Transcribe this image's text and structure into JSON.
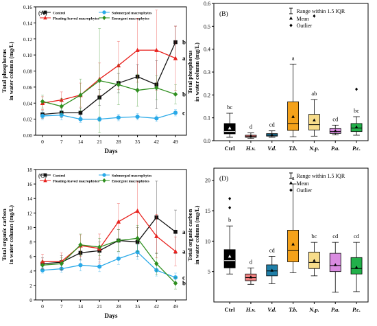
{
  "colors": {
    "control": "#111111",
    "submerged": "#29a9e8",
    "floating": "#e8221e",
    "emergent": "#2f8f1f",
    "box_fills": [
      "#000000",
      "#f08080",
      "#1f7fa8",
      "#f5a21a",
      "#f7dc8a",
      "#d98be0",
      "#22b04a"
    ]
  },
  "chart_data": [
    {
      "id": "A",
      "type": "line",
      "panel_label": "(A)",
      "title": "",
      "xlabel": "Days",
      "ylabel": "Total  phosphorus\nin water column (mg/L)",
      "x": [
        0,
        7,
        14,
        21,
        28,
        35,
        42,
        49
      ],
      "x_tick_labels": [
        "0",
        "7",
        "14",
        "21",
        "28",
        "35",
        "42",
        "49"
      ],
      "ylim": [
        0,
        0.16
      ],
      "y_ticks": [
        0.0,
        0.02,
        0.04,
        0.06,
        0.08,
        0.1,
        0.12,
        0.14,
        0.16
      ],
      "y_tick_labels": [
        "0.00",
        "0.02",
        "0.04",
        "0.06",
        "0.08",
        "0.10",
        "0.12",
        "0.14",
        "0.16"
      ],
      "legend": [
        "Control",
        "Submerged macrophytes",
        "Floating-leaved macrophytes",
        "Emergent macrophytes"
      ],
      "legend_position": "top",
      "series": [
        {
          "name": "Control",
          "key": "control",
          "marker": "square",
          "values": [
            0.026,
            0.028,
            0.028,
            0.047,
            0.065,
            0.073,
            0.063,
            0.116
          ],
          "errors": [
            0.005,
            0.006,
            0.006,
            0.01,
            0.012,
            0.015,
            0.03,
            0.02
          ],
          "sig_letter": "b"
        },
        {
          "name": "Submerged macrophytes",
          "key": "submerged",
          "marker": "circle",
          "values": [
            0.024,
            0.025,
            0.02,
            0.02,
            0.022,
            0.023,
            0.021,
            0.028
          ],
          "errors": [
            0.005,
            0.006,
            0.004,
            0.003,
            0.004,
            0.004,
            0.004,
            0.004
          ],
          "sig_letter": "c"
        },
        {
          "name": "Floating-leaved macrophytes",
          "key": "floating",
          "marker": "triangle",
          "values": [
            0.04,
            0.044,
            0.05,
            0.07,
            0.087,
            0.106,
            0.106,
            0.096
          ],
          "errors": [
            0.008,
            0.01,
            0.015,
            0.02,
            0.03,
            0.04,
            0.05,
            0.04
          ],
          "sig_letter": "a"
        },
        {
          "name": "Emergent macrophytes",
          "key": "emergent",
          "marker": "diamond",
          "values": [
            0.042,
            0.036,
            0.05,
            0.068,
            0.063,
            0.056,
            0.059,
            0.051
          ],
          "errors": [
            0.008,
            0.01,
            0.02,
            0.065,
            0.025,
            0.02,
            0.015,
            0.012
          ],
          "sig_letter": "b"
        }
      ]
    },
    {
      "id": "B",
      "type": "box",
      "panel_label": "(B)",
      "xlabel": "",
      "ylabel": "Total phosphorus\nin water column (mg/L)",
      "categories": [
        "Ctrl",
        "H.v.",
        "V.d.",
        "T.b.",
        "N.p.",
        "P.a.",
        "P.c."
      ],
      "italic_categories": [
        false,
        true,
        true,
        true,
        true,
        true,
        true
      ],
      "ylim": [
        0,
        0.6
      ],
      "y_ticks": [
        0.0,
        0.1,
        0.2,
        0.3,
        0.4,
        0.5,
        0.6
      ],
      "y_tick_labels": [
        "0.0",
        "0.1",
        "0.2",
        "0.3",
        "0.4",
        "0.5",
        "0.6"
      ],
      "legend": {
        "range": "Range within 1.5 IQR",
        "mean": "Mean",
        "outlier": "Outlier"
      },
      "legend_position": "top-right",
      "boxes": [
        {
          "min": 0.015,
          "q1": 0.03,
          "median": 0.04,
          "q3": 0.075,
          "max": 0.12,
          "mean": 0.055,
          "outliers": [],
          "letter": "bc"
        },
        {
          "min": 0.01,
          "q1": 0.015,
          "median": 0.018,
          "q3": 0.024,
          "max": 0.034,
          "mean": 0.02,
          "outliers": [],
          "letter": "d"
        },
        {
          "min": 0.015,
          "q1": 0.02,
          "median": 0.024,
          "q3": 0.031,
          "max": 0.043,
          "mean": 0.025,
          "outliers": [],
          "letter": "cd"
        },
        {
          "min": 0.017,
          "q1": 0.045,
          "median": 0.075,
          "q3": 0.17,
          "max": 0.335,
          "mean": 0.105,
          "outliers": [],
          "letter": "a"
        },
        {
          "min": 0.02,
          "q1": 0.047,
          "median": 0.07,
          "q3": 0.115,
          "max": 0.18,
          "mean": 0.09,
          "outliers": [
            0.545
          ],
          "letter": "ab"
        },
        {
          "min": 0.025,
          "q1": 0.032,
          "median": 0.04,
          "q3": 0.053,
          "max": 0.068,
          "mean": 0.043,
          "outliers": [],
          "letter": "cd"
        },
        {
          "min": 0.024,
          "q1": 0.04,
          "median": 0.055,
          "q3": 0.075,
          "max": 0.105,
          "mean": 0.06,
          "outliers": [
            0.225
          ],
          "letter": "bc"
        }
      ]
    },
    {
      "id": "C",
      "type": "line",
      "panel_label": "(C)",
      "xlabel": "Days",
      "ylabel": "Total organic carbon\nin water column (mg/L)",
      "x": [
        0,
        7,
        14,
        21,
        28,
        35,
        42,
        49
      ],
      "x_tick_labels": [
        "0",
        "7",
        "14",
        "21",
        "28",
        "35",
        "42",
        "49"
      ],
      "ylim": [
        0,
        18
      ],
      "y_ticks": [
        0,
        2,
        4,
        6,
        8,
        10,
        12,
        14,
        16,
        18
      ],
      "y_tick_labels": [
        "0",
        "2",
        "4",
        "6",
        "8",
        "10",
        "12",
        "14",
        "16",
        "18"
      ],
      "legend": [
        "Control",
        "Submerged macrophytes",
        "Floating-leaved macrophytes",
        "Emergent macrophytes"
      ],
      "legend_position": "top",
      "series": [
        {
          "name": "Control",
          "key": "control",
          "marker": "square",
          "values": [
            5.0,
            5.2,
            6.5,
            6.8,
            8.2,
            8.0,
            11.4,
            9.4
          ],
          "errors": [
            0.8,
            0.9,
            1.0,
            1.2,
            1.5,
            2.0,
            5.0,
            3.0
          ],
          "sig_letter": "a"
        },
        {
          "name": "Submerged macrophytes",
          "key": "submerged",
          "marker": "circle",
          "values": [
            4.1,
            4.3,
            4.8,
            4.6,
            5.7,
            6.6,
            4.1,
            3.1
          ],
          "errors": [
            0.4,
            0.5,
            0.8,
            0.7,
            0.8,
            1.0,
            0.8,
            0.6
          ],
          "sig_letter": "c"
        },
        {
          "name": "Floating-leaved macrophytes",
          "key": "floating",
          "marker": "triangle",
          "values": [
            5.3,
            5.3,
            7.5,
            7.1,
            10.8,
            12.3,
            8.8,
            6.7
          ],
          "errors": [
            1.0,
            1.2,
            1.5,
            2.0,
            2.5,
            4.0,
            3.0,
            2.0
          ],
          "sig_letter": "a"
        },
        {
          "name": "Emergent macrophytes",
          "key": "emergent",
          "marker": "diamond",
          "values": [
            4.8,
            5.0,
            7.6,
            7.3,
            8.2,
            8.5,
            5.0,
            2.3
          ],
          "errors": [
            0.6,
            0.8,
            1.5,
            1.2,
            1.5,
            1.8,
            1.5,
            0.8
          ],
          "sig_letter": "b"
        }
      ]
    },
    {
      "id": "D",
      "type": "box",
      "panel_label": "(D)",
      "xlabel": "",
      "ylabel": "Total organic carbon\nin water column (mg/L)",
      "categories": [
        "Ctrl",
        "H.v.",
        "V.d.",
        "T.b.",
        "N.p.",
        "P.a.",
        "P.c."
      ],
      "italic_categories": [
        false,
        true,
        true,
        true,
        true,
        true,
        true
      ],
      "ylim": [
        0,
        22
      ],
      "y_ticks": [
        5,
        10,
        15,
        20
      ],
      "y_tick_labels": [
        "5",
        "10",
        "15",
        "20"
      ],
      "legend": {
        "range": "Range within 1.5 IQR",
        "mean": "Mean",
        "outlier": "Outlier"
      },
      "legend_position": "top-right",
      "boxes": [
        {
          "min": 4.6,
          "q1": 5.6,
          "median": 6.8,
          "q3": 8.6,
          "max": 12.5,
          "mean": 7.5,
          "outliers": [
            17.0,
            15.5
          ],
          "letter": "b"
        },
        {
          "min": 2.9,
          "q1": 3.5,
          "median": 4.0,
          "q3": 4.6,
          "max": 5.6,
          "mean": 4.1,
          "outliers": [],
          "letter": "d"
        },
        {
          "min": 3.0,
          "q1": 4.3,
          "median": 5.1,
          "q3": 6.1,
          "max": 7.5,
          "mean": 5.2,
          "outliers": [],
          "letter": "cd"
        },
        {
          "min": 4.8,
          "q1": 6.6,
          "median": 8.5,
          "q3": 11.8,
          "max": 19.4,
          "mean": 9.5,
          "outliers": [],
          "letter": "a"
        },
        {
          "min": 4.3,
          "q1": 5.5,
          "median": 6.5,
          "q3": 8.2,
          "max": 9.8,
          "mean": 6.8,
          "outliers": [],
          "letter": "bc"
        },
        {
          "min": 1.6,
          "q1": 5.0,
          "median": 6.0,
          "q3": 8.0,
          "max": 9.8,
          "mean": 6.1,
          "outliers": [],
          "letter": "cd"
        },
        {
          "min": 1.7,
          "q1": 4.6,
          "median": 5.5,
          "q3": 7.3,
          "max": 9.8,
          "mean": 5.7,
          "outliers": [],
          "letter": "cd"
        }
      ]
    }
  ]
}
